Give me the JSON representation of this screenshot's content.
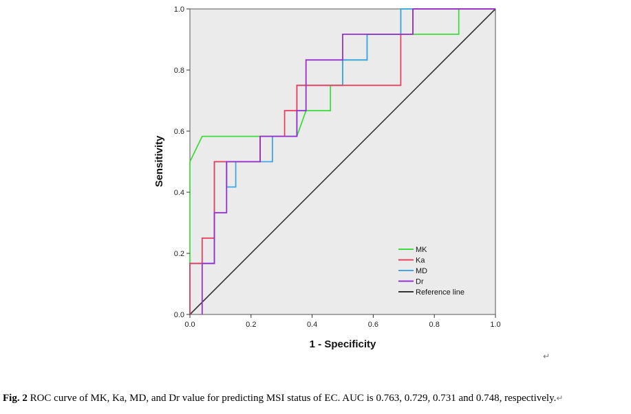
{
  "chart_data": {
    "type": "line",
    "title": "",
    "xlabel": "1 - Specificity",
    "ylabel": "Sensitivity",
    "xlim": [
      0,
      1
    ],
    "ylim": [
      0,
      1
    ],
    "xticks": [
      0.0,
      0.2,
      0.4,
      0.6,
      0.8,
      1.0
    ],
    "yticks": [
      0.0,
      0.2,
      0.4,
      0.6,
      0.8,
      1.0
    ],
    "tick_labels": [
      "0.0",
      "0.2",
      "0.4",
      "0.6",
      "0.8",
      "1.0"
    ],
    "grid": false,
    "legend_position": "bottom-right",
    "background": "#ebebeb",
    "series": [
      {
        "name": "MK",
        "color": "#3ddc3d",
        "x": [
          0,
          0,
          0.04,
          0.35,
          0.38,
          0.46,
          0.46,
          0.5,
          0.5,
          0.58,
          0.58,
          0.69,
          0.69,
          0.73,
          0.73,
          0.88,
          0.88,
          1.0
        ],
        "y": [
          0,
          0.5,
          0.583,
          0.583,
          0.667,
          0.667,
          0.75,
          0.75,
          0.833,
          0.833,
          0.917,
          0.917,
          1.0,
          1.0,
          0.917,
          0.917,
          1.0,
          1.0
        ]
      },
      {
        "name": "Ka",
        "color": "#e8405e",
        "x": [
          0,
          0,
          0.04,
          0.04,
          0.08,
          0.08,
          0.23,
          0.23,
          0.31,
          0.31,
          0.35,
          0.35,
          0.69,
          0.69,
          0.73,
          0.73,
          1.0
        ],
        "y": [
          0,
          0.167,
          0.167,
          0.25,
          0.25,
          0.5,
          0.5,
          0.583,
          0.583,
          0.667,
          0.667,
          0.75,
          0.75,
          0.917,
          0.917,
          1.0,
          1.0
        ]
      },
      {
        "name": "MD",
        "color": "#40a4e8",
        "x": [
          0,
          0,
          0.08,
          0.08,
          0.12,
          0.12,
          0.15,
          0.15,
          0.27,
          0.27,
          0.35,
          0.35,
          0.5,
          0.5,
          0.58,
          0.58,
          0.69,
          0.69,
          1.0
        ],
        "y": [
          0,
          0.167,
          0.167,
          0.5,
          0.5,
          0.417,
          0.417,
          0.5,
          0.5,
          0.583,
          0.583,
          0.75,
          0.75,
          0.833,
          0.833,
          0.917,
          0.917,
          1.0,
          1.0
        ]
      },
      {
        "name": "Dr",
        "color": "#9430d0",
        "x": [
          0.04,
          0.04,
          0.08,
          0.08,
          0.12,
          0.12,
          0.23,
          0.23,
          0.35,
          0.35,
          0.38,
          0.38,
          0.5,
          0.5,
          0.69,
          0.69,
          0.73,
          0.73,
          1.0
        ],
        "y": [
          0,
          0.167,
          0.167,
          0.333,
          0.333,
          0.5,
          0.5,
          0.583,
          0.583,
          0.667,
          0.667,
          0.833,
          0.833,
          0.917,
          0.917,
          0.917,
          0.917,
          1.0,
          1.0
        ]
      },
      {
        "name": "Reference line",
        "color": "#333333",
        "x": [
          0,
          1
        ],
        "y": [
          0,
          1
        ]
      }
    ],
    "caption": {
      "label": "Fig. 2",
      "text": " ROC curve of MK, Ka, MD, and Dr value for predicting MSI status of EC. AUC is 0.763, 0.729, 0.731 and 0.748, respectively.",
      "mark": "↵"
    },
    "stray_mark": "↵"
  }
}
